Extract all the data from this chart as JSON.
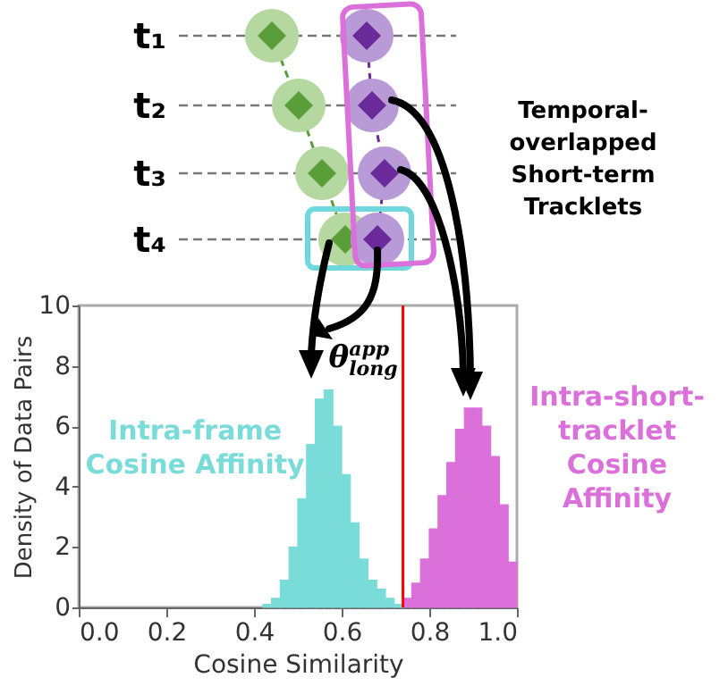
{
  "chart_data": {
    "type": "histogram",
    "xlabel": "Cosine Similarity",
    "ylabel": "Density of Data Pairs",
    "bins": [
      0.42,
      0.44,
      0.46,
      0.48,
      0.5,
      0.52,
      0.54,
      0.56,
      0.58,
      0.6,
      0.62,
      0.64,
      0.66,
      0.68,
      0.7,
      0.72,
      0.74,
      0.76,
      0.78,
      0.8,
      0.82,
      0.84,
      0.86,
      0.88,
      0.9,
      0.92,
      0.94,
      0.96,
      0.98,
      1.0
    ],
    "series": [
      {
        "name": "Intra-frame\nCosine Affinity",
        "color": "#7adcd8",
        "values": [
          0.1,
          0.3,
          0.9,
          2.0,
          3.6,
          5.4,
          6.9,
          7.2,
          6.0,
          4.4,
          2.8,
          1.6,
          0.9,
          0.6,
          0.3,
          0.1,
          null,
          null,
          null,
          null,
          null,
          null,
          null,
          null,
          null,
          null,
          null,
          null,
          null
        ]
      },
      {
        "name": "Intra-short-\ntracklet\nCosine\nAffinity",
        "color": "#db70db",
        "values": [
          null,
          null,
          null,
          null,
          null,
          null,
          null,
          null,
          null,
          null,
          null,
          null,
          null,
          null,
          null,
          null,
          0.3,
          0.8,
          1.6,
          2.6,
          3.7,
          4.8,
          5.9,
          6.6,
          6.6,
          6.0,
          5.0,
          3.4,
          1.5
        ]
      }
    ],
    "xlim": [
      0,
      1
    ],
    "xticks": [
      {
        "value": 0,
        "label": "0.0"
      },
      0.2,
      0.4,
      0.6,
      0.8,
      {
        "value": 1,
        "label": "1.0"
      }
    ],
    "ylim": [
      0,
      10
    ],
    "yticks": [
      0,
      2,
      4,
      6,
      8,
      10
    ],
    "ref_lines": [
      {
        "axis": "x",
        "value": 0.74,
        "label": "θ$^{app}$$_{long}$",
        "color": "#ff0000"
      }
    ],
    "annotations": [
      "t₁",
      "t₂",
      "t₃",
      "t₄",
      "Temporal-\noverlapped\nShort-term\nTracklets"
    ],
    "grid": false,
    "legend": false
  }
}
